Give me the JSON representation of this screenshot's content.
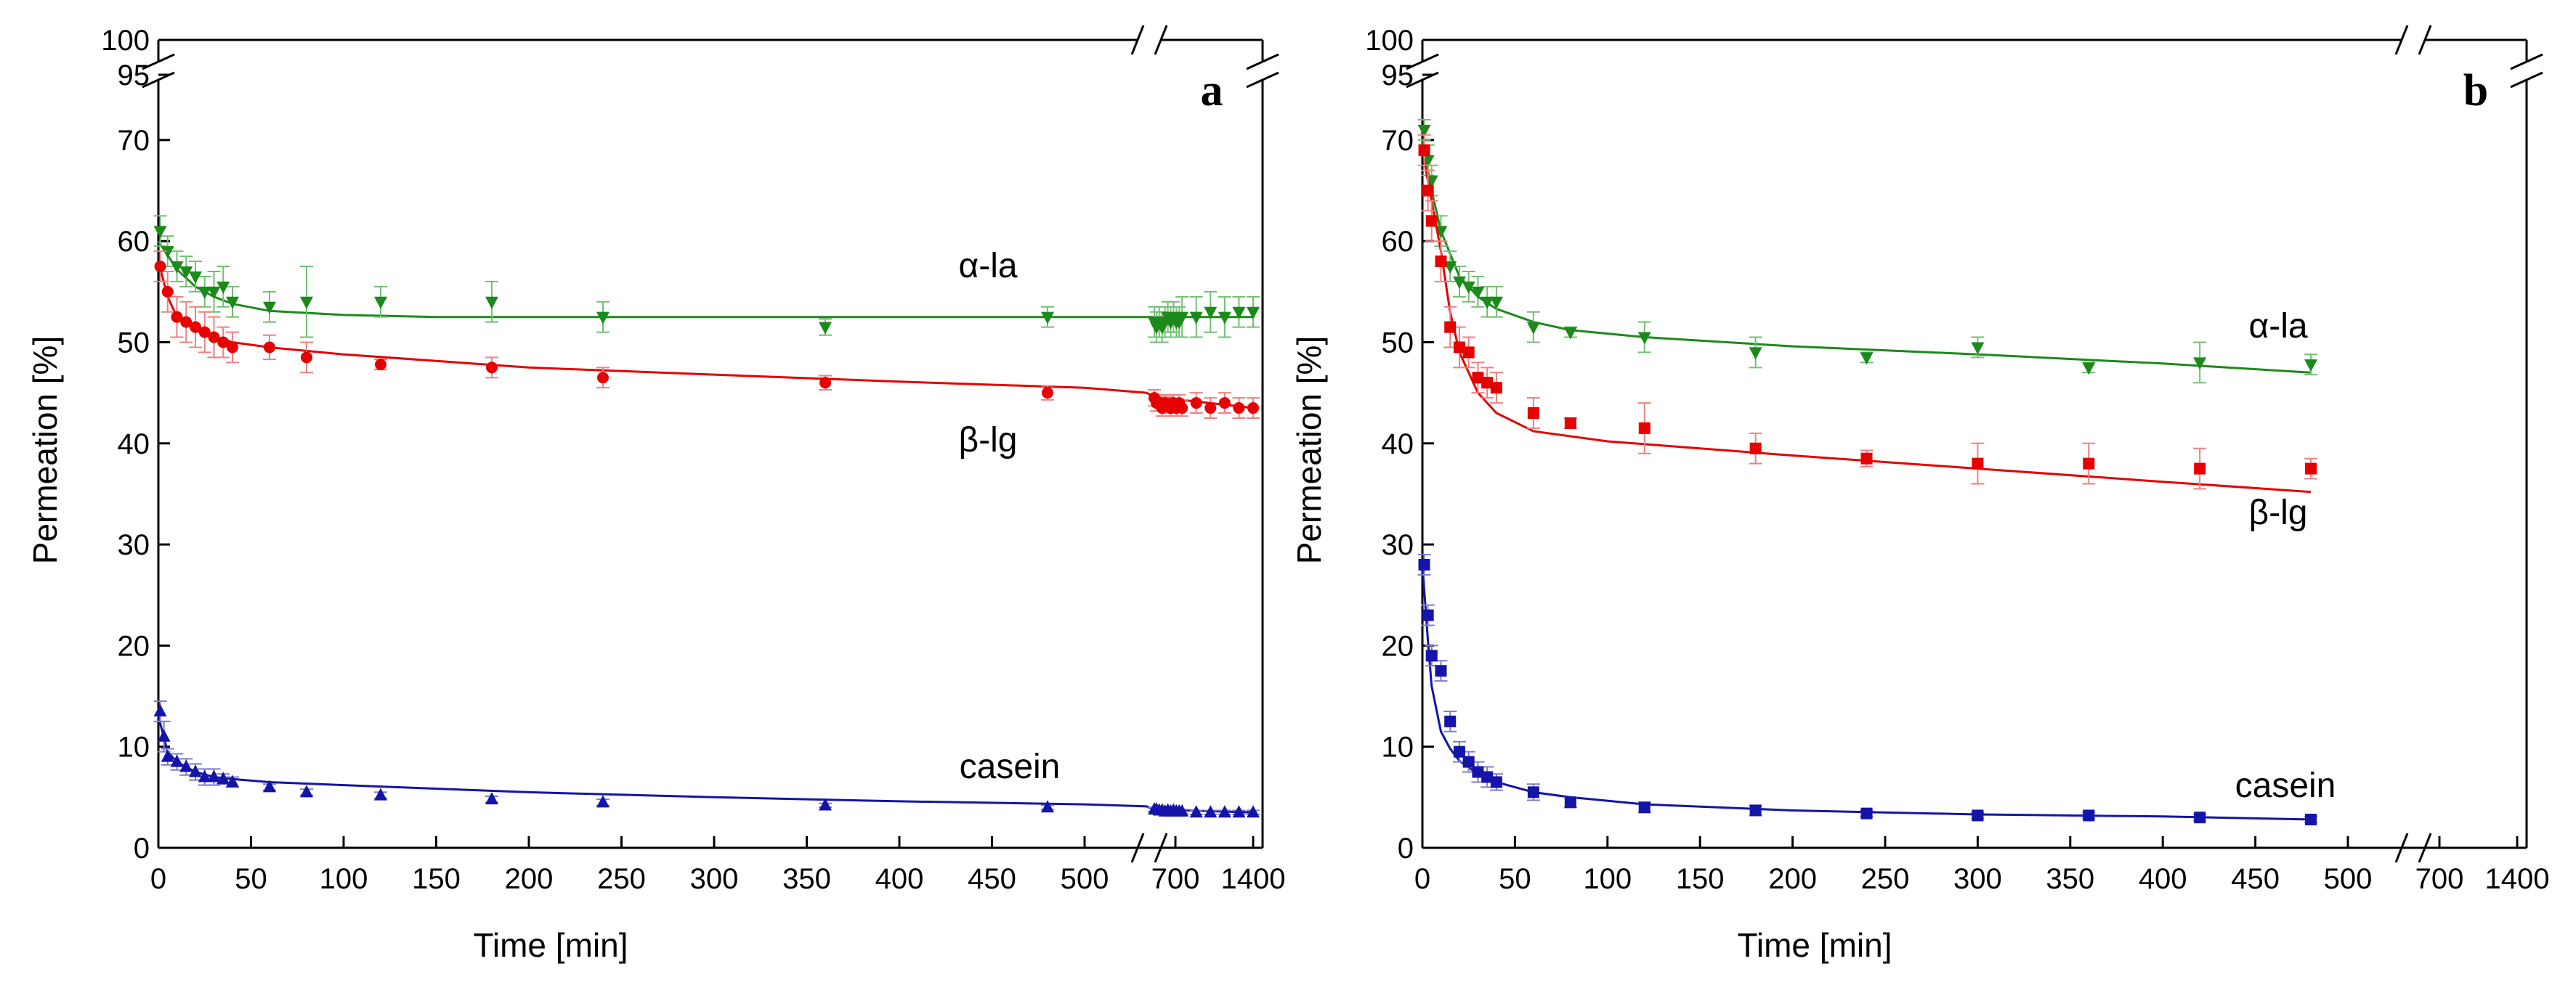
{
  "chart_data": [
    {
      "type": "scatter",
      "panel": "a",
      "xlabel": "Time [min]",
      "ylabel": "Permeation [%]",
      "xticks": [
        "0",
        "50",
        "100",
        "150",
        "200",
        "250",
        "300",
        "350",
        "400",
        "450",
        "500",
        "700",
        "1400"
      ],
      "ytick_labels": [
        "0",
        "10",
        "20",
        "30",
        "40",
        "50",
        "60",
        "70",
        "95",
        "100"
      ],
      "ylim": [
        0,
        100
      ],
      "axis_breaks": "y between 75 and 95; x between 525 and 700",
      "series": [
        {
          "name": "α-la",
          "color": "#1b8a1b",
          "marker": "triangle-down",
          "x": [
            1,
            5,
            10,
            15,
            20,
            25,
            30,
            35,
            40,
            60,
            80,
            120,
            180,
            240,
            360,
            480,
            705,
            720,
            740,
            760,
            780,
            800,
            820,
            840,
            860,
            880,
            900,
            1000,
            1100,
            1200,
            1300,
            1400
          ],
          "y": [
            61,
            59,
            57.5,
            57,
            56.5,
            55,
            55,
            55.5,
            54,
            53.5,
            54,
            54,
            54,
            52.5,
            51.5,
            52.5,
            52,
            51.5,
            52,
            51.5,
            52,
            52.5,
            52,
            52.5,
            52,
            52,
            52.5,
            52.5,
            53,
            52.5,
            53,
            53
          ],
          "err": [
            1.5,
            1.5,
            1.5,
            1.5,
            1.5,
            1.5,
            2,
            2,
            1.5,
            1.5,
            3.5,
            1.5,
            2,
            1.5,
            0.8,
            1,
            1.5,
            1.5,
            1.5,
            1.5,
            1.5,
            1.5,
            1.5,
            1.5,
            1.5,
            1.5,
            2,
            2,
            2,
            2,
            1.5,
            1.5
          ],
          "fit_x": [
            0,
            5,
            10,
            20,
            30,
            40,
            60,
            100,
            150,
            300,
            500,
            700,
            1400
          ],
          "fit_y": [
            60,
            58.6,
            57.2,
            55.5,
            54.5,
            53.8,
            53.1,
            52.7,
            52.5,
            52.5,
            52.5,
            52.5,
            52.5
          ]
        },
        {
          "name": "β-lg",
          "color": "#e60000",
          "marker": "circle",
          "x": [
            1,
            5,
            10,
            15,
            20,
            25,
            30,
            35,
            40,
            60,
            80,
            120,
            180,
            240,
            360,
            480,
            705,
            720,
            740,
            760,
            780,
            800,
            820,
            840,
            860,
            880,
            900,
            1000,
            1100,
            1200,
            1300,
            1400
          ],
          "y": [
            57.5,
            55,
            52.5,
            52,
            51.5,
            51,
            50.5,
            50,
            49.5,
            49.5,
            48.5,
            47.8,
            47.5,
            46.5,
            46,
            45,
            44.5,
            44,
            44,
            43.5,
            44,
            43.8,
            43.5,
            44,
            43.5,
            44,
            43.5,
            44,
            43.5,
            44,
            43.5,
            43.5
          ],
          "err": [
            1.5,
            2,
            2,
            2,
            2,
            2,
            2,
            1.5,
            1.5,
            1.2,
            1.5,
            0.5,
            1,
            1,
            0.7,
            0.7,
            0.8,
            0.8,
            0.8,
            0.8,
            0.8,
            0.8,
            0.8,
            0.8,
            0.8,
            0.8,
            0.8,
            1,
            1,
            1,
            1,
            1
          ],
          "fit_x": [
            0,
            5,
            10,
            20,
            30,
            40,
            60,
            100,
            200,
            300,
            400,
            500,
            700,
            705,
            1400
          ],
          "fit_y": [
            58,
            54.5,
            52.5,
            51.2,
            50.5,
            50,
            49.5,
            48.8,
            47.5,
            46.8,
            46.1,
            45.5,
            45,
            44.6,
            43.5
          ]
        },
        {
          "name": "casein",
          "color": "#1414a8",
          "marker": "triangle-up",
          "x": [
            1,
            3,
            5,
            10,
            15,
            20,
            25,
            30,
            35,
            40,
            60,
            80,
            120,
            180,
            240,
            360,
            480,
            705,
            720,
            740,
            760,
            780,
            800,
            820,
            840,
            860,
            880,
            900,
            1000,
            1100,
            1200,
            1300,
            1400
          ],
          "y": [
            13.5,
            11,
            9,
            8.5,
            8,
            7.5,
            7,
            7,
            6.8,
            6.5,
            6,
            5.5,
            5.2,
            4.8,
            4.5,
            4.2,
            4,
            3.8,
            3.8,
            3.7,
            3.7,
            3.6,
            3.7,
            3.6,
            3.7,
            3.6,
            3.6,
            3.6,
            3.5,
            3.5,
            3.5,
            3.5,
            3.5
          ],
          "err": [
            1,
            1.5,
            0.8,
            0.8,
            0.8,
            0.8,
            0.8,
            0.8,
            0.5,
            0.5,
            0.3,
            0.3,
            0.3,
            0.3,
            0.3,
            0.2,
            0.2,
            0.2,
            0.2,
            0.2,
            0.2,
            0.2,
            0.2,
            0.2,
            0.2,
            0.2,
            0.2,
            0.2,
            0.2,
            0.2,
            0.2,
            0.2,
            0.2
          ],
          "fit_x": [
            0,
            5,
            10,
            20,
            30,
            40,
            60,
            100,
            200,
            300,
            400,
            500,
            700,
            705,
            1400
          ],
          "fit_y": [
            13,
            9.5,
            8.5,
            7.5,
            7,
            6.8,
            6.5,
            6.2,
            5.5,
            5,
            4.6,
            4.3,
            4.1,
            3.8,
            3.5
          ]
        }
      ]
    },
    {
      "type": "scatter",
      "panel": "b",
      "xlabel": "Time [min]",
      "ylabel": "Permeation [%]",
      "xticks": [
        "0",
        "50",
        "100",
        "150",
        "200",
        "250",
        "300",
        "350",
        "400",
        "450",
        "500",
        "700",
        "1400"
      ],
      "ytick_labels": [
        "0",
        "10",
        "20",
        "30",
        "40",
        "50",
        "60",
        "70",
        "95",
        "100"
      ],
      "ylim": [
        0,
        100
      ],
      "axis_breaks": "y between 75 and 95; x between 525 and 700",
      "series": [
        {
          "name": "α-la",
          "color": "#1b8a1b",
          "marker": "triangle-down",
          "x": [
            1,
            3,
            5,
            10,
            15,
            20,
            25,
            30,
            35,
            40,
            60,
            80,
            120,
            180,
            240,
            300,
            360,
            420,
            480
          ],
          "y": [
            71,
            68,
            66,
            61,
            57.5,
            56,
            55.5,
            55,
            54,
            54,
            51.5,
            51,
            50.5,
            49,
            48.5,
            49.5,
            47.5,
            48,
            47.8
          ],
          "err": [
            1,
            1.5,
            1.5,
            1.5,
            1.5,
            1.5,
            1.5,
            1.5,
            1.5,
            1.5,
            1.5,
            0.5,
            1.5,
            1.5,
            0.5,
            1,
            0.5,
            2,
            1
          ],
          "fit_x": [
            0,
            5,
            10,
            20,
            30,
            40,
            60,
            80,
            120,
            200,
            300,
            400,
            480
          ],
          "fit_y": [
            70,
            65,
            61,
            56.5,
            54.5,
            53.3,
            52,
            51.2,
            50.5,
            49.6,
            48.8,
            47.9,
            47
          ]
        },
        {
          "name": "β-lg",
          "color": "#e60000",
          "marker": "square",
          "x": [
            1,
            3,
            5,
            10,
            15,
            20,
            25,
            30,
            35,
            40,
            60,
            80,
            120,
            180,
            240,
            300,
            360,
            420,
            480
          ],
          "y": [
            69,
            65,
            62,
            58,
            51.5,
            49.5,
            49,
            46.5,
            46,
            45.5,
            43,
            42,
            41.5,
            39.5,
            38.5,
            38,
            38,
            37.5,
            37.5
          ],
          "err": [
            1.5,
            2,
            2,
            2,
            2,
            2,
            1.5,
            1.5,
            1.5,
            1.5,
            1.5,
            0.5,
            2.5,
            1.5,
            0.8,
            2,
            2,
            2,
            1
          ],
          "fit_x": [
            0,
            5,
            10,
            15,
            20,
            30,
            40,
            60,
            100,
            200,
            300,
            400,
            480
          ],
          "fit_y": [
            69,
            64,
            59,
            53,
            49,
            45,
            43,
            41.2,
            40.2,
            38.8,
            37.5,
            36.2,
            35.2
          ]
        },
        {
          "name": "casein",
          "color": "#1414a8",
          "marker": "square",
          "x": [
            1,
            3,
            5,
            10,
            15,
            20,
            25,
            30,
            35,
            40,
            60,
            80,
            120,
            180,
            240,
            300,
            360,
            420,
            480
          ],
          "y": [
            28,
            23,
            19,
            17.5,
            12.5,
            9.5,
            8.5,
            7.5,
            7,
            6.5,
            5.5,
            4.5,
            4,
            3.7,
            3.4,
            3.2,
            3.2,
            3,
            2.8
          ],
          "err": [
            1,
            1,
            1,
            1,
            1,
            1,
            1,
            1,
            1,
            0.8,
            0.8,
            0.5,
            0.5,
            0.5,
            0.3,
            0.3,
            0.3,
            0.3,
            0.3
          ],
          "fit_x": [
            0,
            3,
            5,
            10,
            15,
            20,
            30,
            40,
            60,
            80,
            120,
            200,
            300,
            400,
            480
          ],
          "fit_y": [
            28,
            20.5,
            16,
            11.5,
            9.8,
            8.6,
            7.3,
            6.5,
            5.5,
            5,
            4.3,
            3.7,
            3.3,
            3.1,
            2.8
          ]
        }
      ]
    }
  ]
}
